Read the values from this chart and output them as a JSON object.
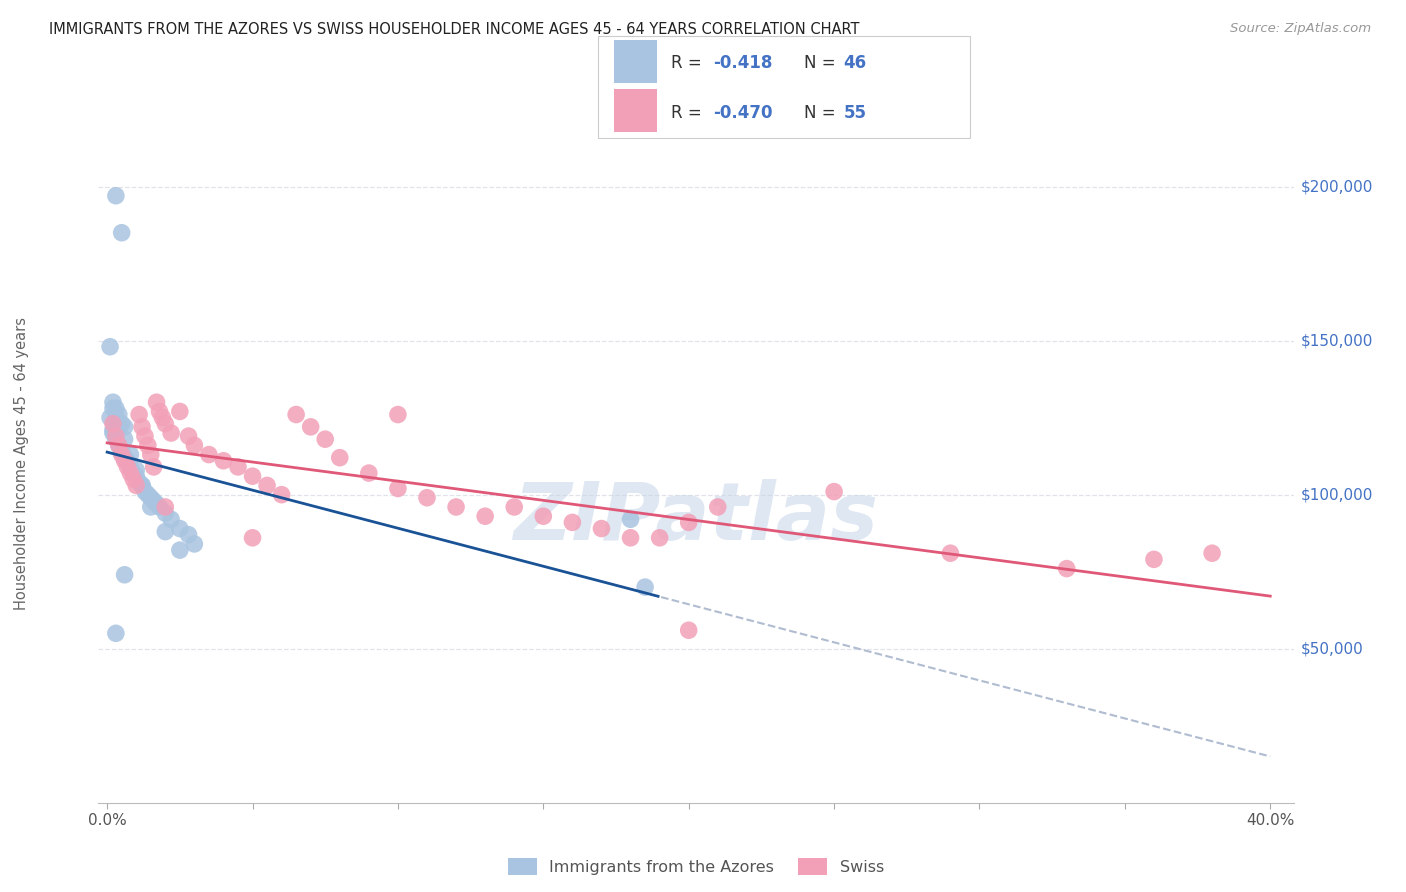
{
  "title": "IMMIGRANTS FROM THE AZORES VS SWISS HOUSEHOLDER INCOME AGES 45 - 64 YEARS CORRELATION CHART",
  "source": "Source: ZipAtlas.com",
  "ylabel": "Householder Income Ages 45 - 64 years",
  "xlim": [
    -0.003,
    0.408
  ],
  "ylim": [
    0,
    220000
  ],
  "xtick_positions": [
    0.0,
    0.05,
    0.1,
    0.15,
    0.2,
    0.25,
    0.3,
    0.35,
    0.4
  ],
  "xticklabels": [
    "0.0%",
    "",
    "",
    "",
    "",
    "",
    "",
    "",
    "40.0%"
  ],
  "ytick_positions": [
    0,
    50000,
    100000,
    150000,
    200000
  ],
  "ytick_labels": [
    "",
    "$50,000",
    "$100,000",
    "$150,000",
    "$200,000"
  ],
  "azores_color": "#a8c4e0",
  "swiss_color": "#f2a0b8",
  "azores_line_color": "#1a5296",
  "swiss_line_color": "#e05878",
  "dashed_line_color": "#b0bcd0",
  "watermark_color": "#c5d5e8",
  "legend_R_azores": "-0.418",
  "legend_N_azores": "46",
  "legend_R_swiss": "-0.470",
  "legend_N_swiss": "55",
  "background_color": "#ffffff",
  "grid_color": "#e0e4ea",
  "ytick_color": "#4472c4",
  "azores_x": [
    0.003,
    0.005,
    0.001,
    0.002,
    0.003,
    0.004,
    0.005,
    0.006,
    0.002,
    0.003,
    0.004,
    0.005,
    0.006,
    0.007,
    0.008,
    0.009,
    0.01,
    0.011,
    0.012,
    0.013,
    0.014,
    0.015,
    0.016,
    0.017,
    0.018,
    0.02,
    0.022,
    0.025,
    0.028,
    0.03,
    0.002,
    0.003,
    0.004,
    0.006,
    0.008,
    0.01,
    0.012,
    0.015,
    0.02,
    0.025,
    0.18,
    0.185,
    0.003,
    0.006,
    0.001,
    0.002
  ],
  "azores_y": [
    197000,
    185000,
    148000,
    130000,
    128000,
    126000,
    123000,
    122000,
    120000,
    118000,
    116000,
    114000,
    112000,
    111000,
    109000,
    107000,
    106000,
    104000,
    103000,
    101000,
    100000,
    99000,
    98000,
    97000,
    96000,
    94000,
    92000,
    89000,
    87000,
    84000,
    128000,
    125000,
    122000,
    118000,
    113000,
    108000,
    103000,
    96000,
    88000,
    82000,
    92000,
    70000,
    55000,
    74000,
    125000,
    121000
  ],
  "swiss_x": [
    0.002,
    0.003,
    0.004,
    0.005,
    0.006,
    0.007,
    0.008,
    0.009,
    0.01,
    0.011,
    0.012,
    0.013,
    0.014,
    0.015,
    0.016,
    0.017,
    0.018,
    0.019,
    0.02,
    0.022,
    0.025,
    0.028,
    0.03,
    0.035,
    0.04,
    0.045,
    0.05,
    0.055,
    0.06,
    0.065,
    0.07,
    0.075,
    0.08,
    0.09,
    0.1,
    0.11,
    0.12,
    0.13,
    0.14,
    0.15,
    0.16,
    0.17,
    0.18,
    0.19,
    0.2,
    0.21,
    0.25,
    0.29,
    0.33,
    0.36,
    0.38,
    0.02,
    0.05,
    0.1,
    0.2
  ],
  "swiss_y": [
    123000,
    119000,
    116000,
    113000,
    111000,
    109000,
    107000,
    105000,
    103000,
    126000,
    122000,
    119000,
    116000,
    113000,
    109000,
    130000,
    127000,
    125000,
    123000,
    120000,
    127000,
    119000,
    116000,
    113000,
    111000,
    109000,
    106000,
    103000,
    100000,
    126000,
    122000,
    118000,
    112000,
    107000,
    102000,
    99000,
    96000,
    93000,
    96000,
    93000,
    91000,
    89000,
    86000,
    86000,
    91000,
    96000,
    101000,
    81000,
    76000,
    79000,
    81000,
    96000,
    86000,
    126000,
    56000
  ]
}
